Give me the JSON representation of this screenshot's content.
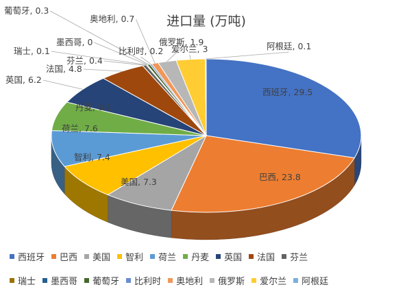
{
  "chart_data": {
    "type": "pie",
    "title": "进口量 (万吨)",
    "series": [
      {
        "name": "",
        "values": [
          {
            "label": "西班牙",
            "value": 29.5,
            "data_label": "西班牙, 29.5",
            "color": "#4472C4"
          },
          {
            "label": "巴西",
            "value": 23.8,
            "data_label": "巴西, 23.8",
            "color": "#ED7D31"
          },
          {
            "label": "美国",
            "value": 7.3,
            "data_label": "美国, 7.3",
            "color": "#A5A5A5"
          },
          {
            "label": "智利",
            "value": 7.4,
            "data_label": "智利, 7.4",
            "color": "#FFC000"
          },
          {
            "label": "荷兰",
            "value": 7.6,
            "data_label": "荷兰, 7.6",
            "color": "#5B9BD5"
          },
          {
            "label": "丹麦",
            "value": 6.1,
            "data_label": "丹麦, 6.1",
            "color": "#70AD47"
          },
          {
            "label": "英国",
            "value": 6.2,
            "data_label": "英国, 6.2",
            "color": "#264478"
          },
          {
            "label": "法国",
            "value": 4.8,
            "data_label": "法国, 4.8",
            "color": "#9E480E"
          },
          {
            "label": "芬兰",
            "value": 0.4,
            "data_label": "芬兰, 0.4",
            "color": "#636363"
          },
          {
            "label": "瑞士",
            "value": 0.1,
            "data_label": "瑞士, 0.1",
            "color": "#997300"
          },
          {
            "label": "墨西哥",
            "value": 0,
            "data_label": "墨西哥, 0",
            "color": "#255E91"
          },
          {
            "label": "葡萄牙",
            "value": 0.3,
            "data_label": "葡萄牙, 0.3",
            "color": "#43682B"
          },
          {
            "label": "比利时",
            "value": 0.2,
            "data_label": "比利时, 0.2",
            "color": "#698ED0"
          },
          {
            "label": "奥地利",
            "value": 0.7,
            "data_label": "奥地利, 0.7",
            "color": "#F1975A"
          },
          {
            "label": "俄罗斯",
            "value": 1.9,
            "data_label": "俄罗斯, 1.9",
            "color": "#B7B7B7"
          },
          {
            "label": "爱尔兰",
            "value": 3,
            "data_label": "爱尔兰, 3",
            "color": "#FFCD33"
          },
          {
            "label": "阿根廷",
            "value": 0.1,
            "data_label": "阿根廷, 0.1",
            "color": "#7CAFDD"
          }
        ]
      }
    ],
    "legend": {
      "placement": "bottom",
      "rows": [
        [
          "西班牙",
          "巴西",
          "美国",
          "智利",
          "荷兰",
          "丹麦",
          "英国",
          "法国",
          "芬兰"
        ],
        [
          "瑞士",
          "墨西哥",
          "葡萄牙",
          "比利时",
          "奥地利",
          "俄罗斯",
          "爱尔兰",
          "阿根廷"
        ]
      ]
    },
    "style": "3d-pie"
  }
}
